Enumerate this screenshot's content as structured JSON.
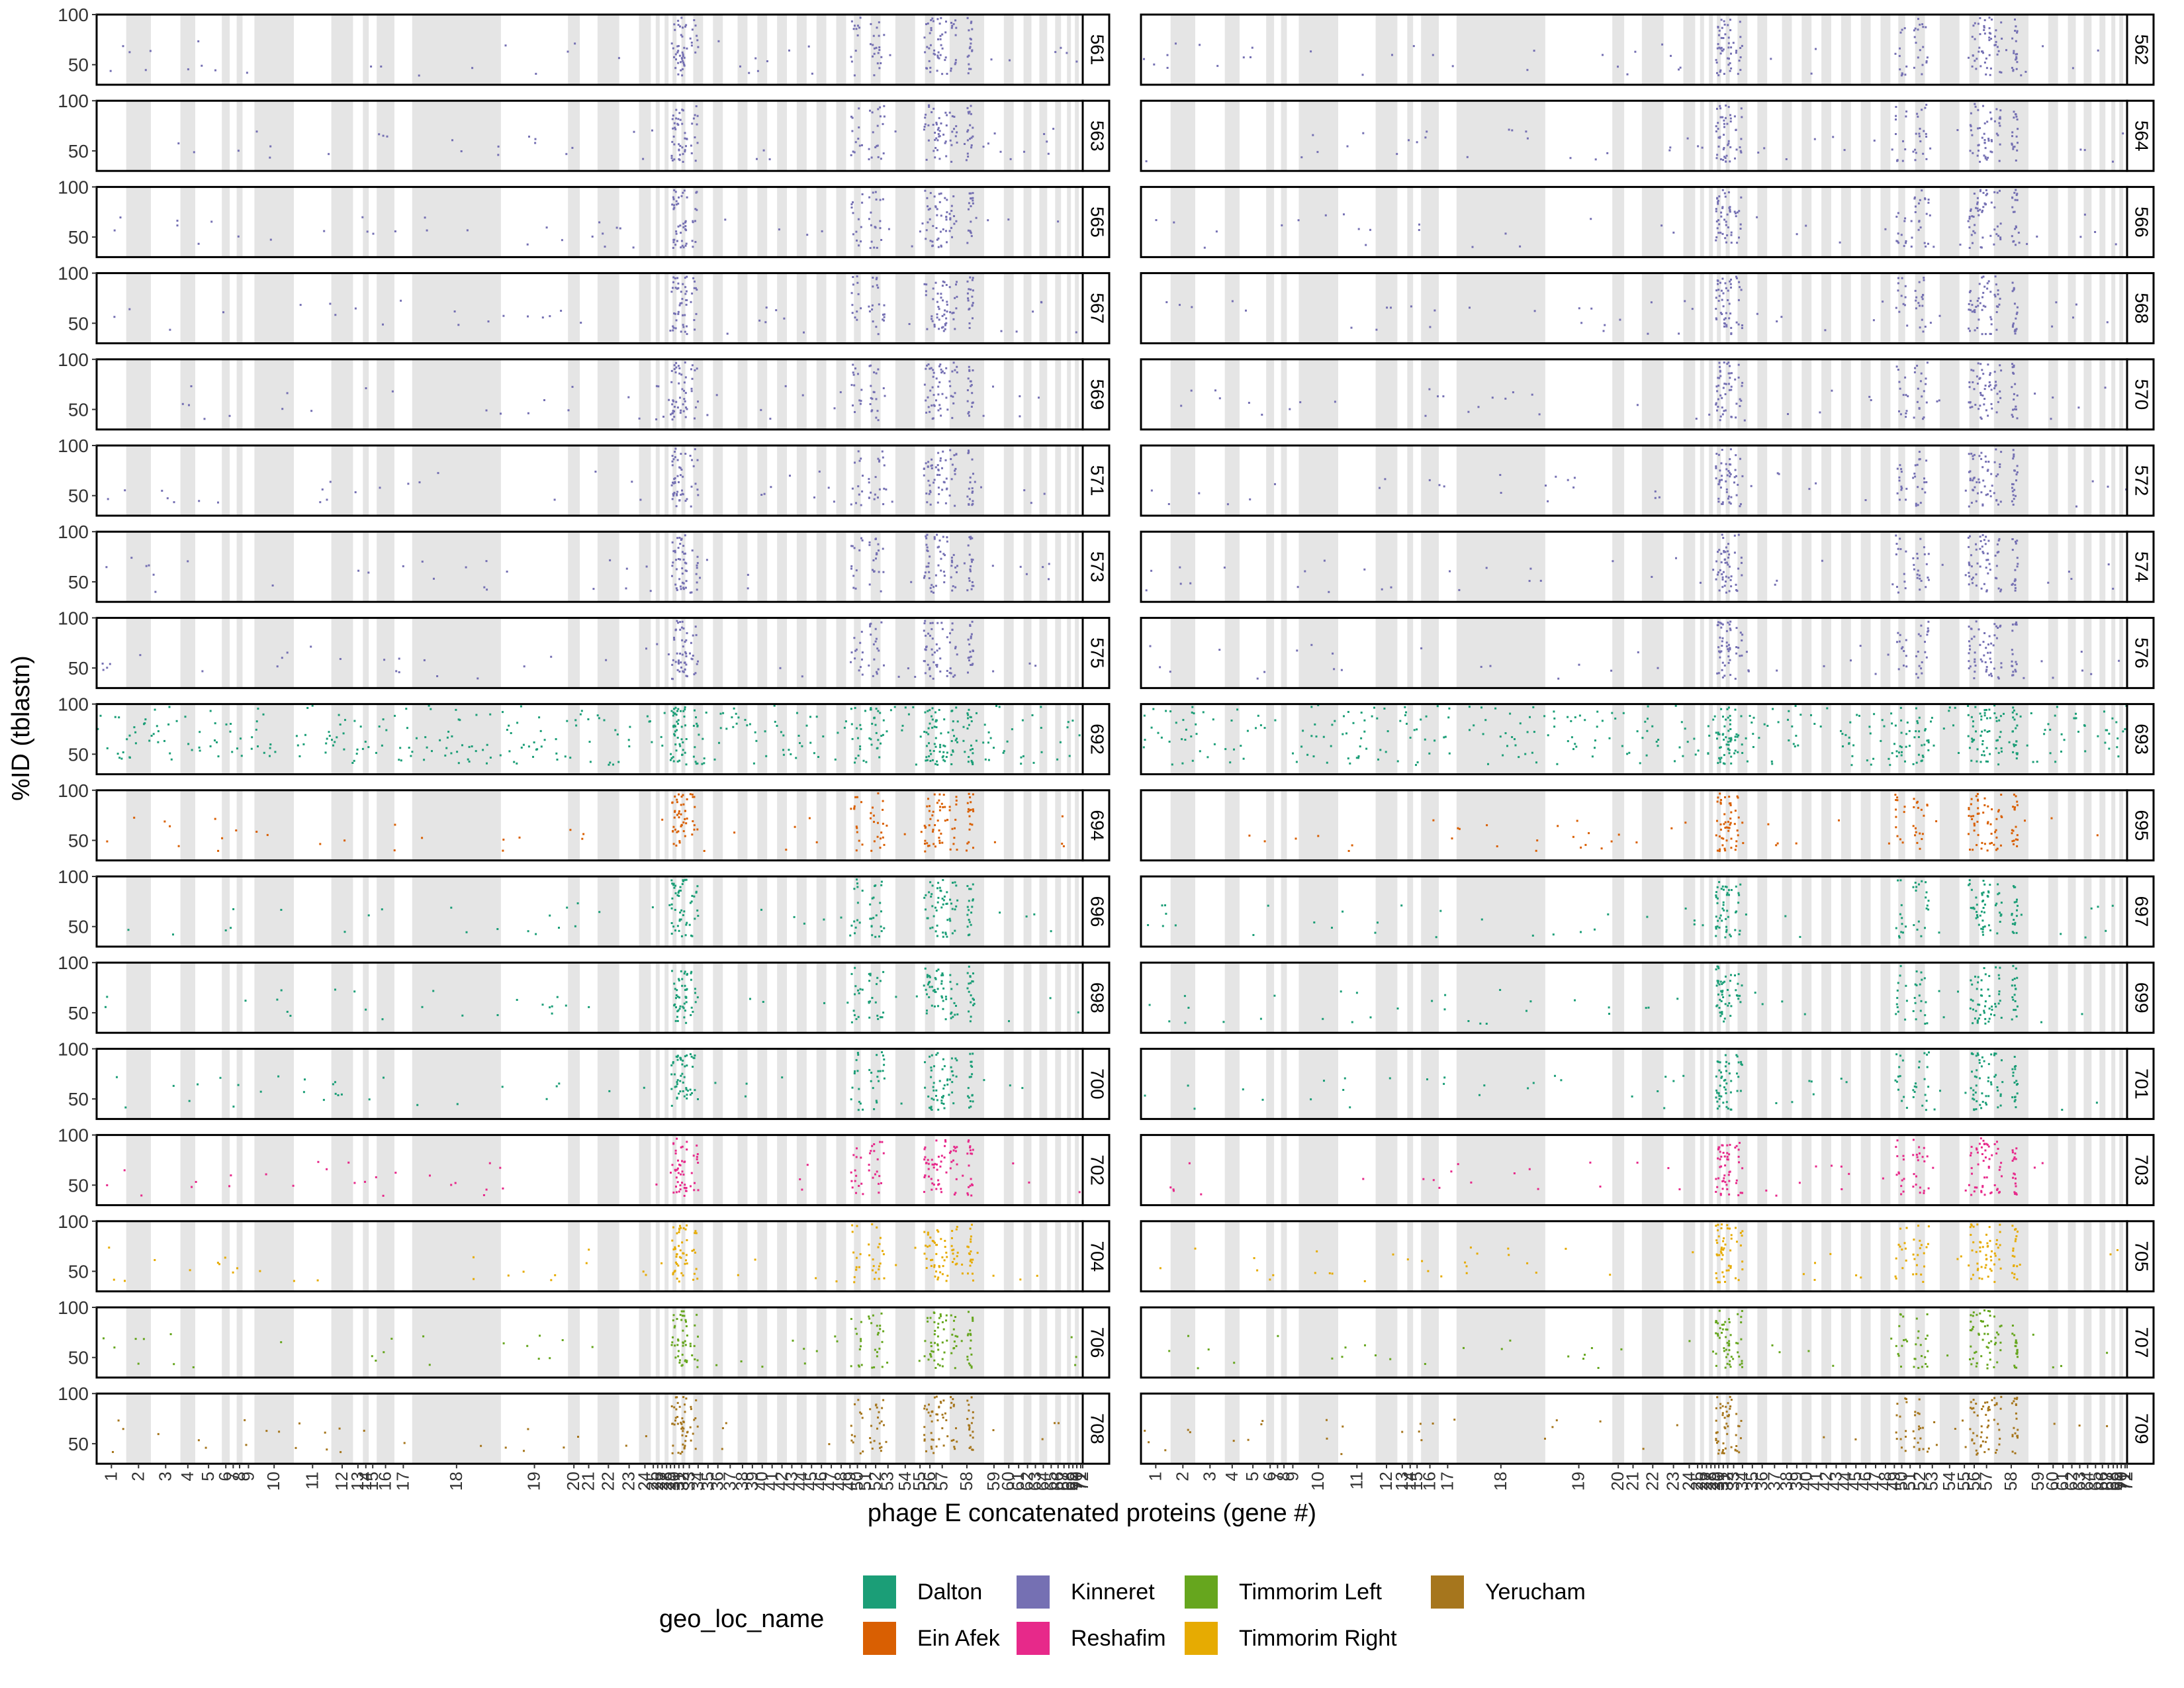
{
  "chart_data": {
    "type": "scatter",
    "facet_layout": "grid, 17 rows x 2 columns",
    "ylabel": "%ID (tblastn)",
    "xlabel": "phage E concatenated proteins (gene #)",
    "yticks": [
      50,
      100
    ],
    "ylim": [
      30,
      100
    ],
    "grid": false,
    "shaded_bands": "alternating grey bands mark gene boundaries along the concatenated proteins",
    "x_tick_labels": [
      "1",
      "2",
      "3",
      "4",
      "5",
      "6",
      "7",
      "8",
      "9",
      "10",
      "11",
      "12",
      "13",
      "14",
      "15",
      "16",
      "17",
      "18",
      "19",
      "20",
      "21",
      "22",
      "23",
      "24",
      "25",
      "26",
      "27",
      "28",
      "29",
      "30",
      "31",
      "32",
      "33",
      "34",
      "35",
      "36",
      "37",
      "38",
      "39",
      "40",
      "41",
      "42",
      "43",
      "44",
      "45",
      "46",
      "47",
      "48",
      "49",
      "50",
      "51",
      "52",
      "53",
      "54",
      "55",
      "56",
      "57",
      "58",
      "59",
      "60",
      "61",
      "62",
      "63",
      "64",
      "65",
      "66",
      "67",
      "68",
      "69",
      "70",
      "71",
      "72"
    ],
    "facets": [
      {
        "id": "561",
        "group": "Kinneret"
      },
      {
        "id": "562",
        "group": "Kinneret"
      },
      {
        "id": "563",
        "group": "Kinneret"
      },
      {
        "id": "564",
        "group": "Kinneret"
      },
      {
        "id": "565",
        "group": "Kinneret"
      },
      {
        "id": "566",
        "group": "Kinneret"
      },
      {
        "id": "567",
        "group": "Kinneret"
      },
      {
        "id": "568",
        "group": "Kinneret"
      },
      {
        "id": "569",
        "group": "Kinneret"
      },
      {
        "id": "570",
        "group": "Kinneret"
      },
      {
        "id": "571",
        "group": "Kinneret"
      },
      {
        "id": "572",
        "group": "Kinneret"
      },
      {
        "id": "573",
        "group": "Kinneret"
      },
      {
        "id": "574",
        "group": "Kinneret"
      },
      {
        "id": "575",
        "group": "Kinneret"
      },
      {
        "id": "576",
        "group": "Kinneret"
      },
      {
        "id": "692",
        "group": "Dalton"
      },
      {
        "id": "693",
        "group": "Dalton"
      },
      {
        "id": "694",
        "group": "Ein Afek"
      },
      {
        "id": "695",
        "group": "Ein Afek"
      },
      {
        "id": "696",
        "group": "Dalton"
      },
      {
        "id": "697",
        "group": "Dalton"
      },
      {
        "id": "698",
        "group": "Dalton"
      },
      {
        "id": "699",
        "group": "Dalton"
      },
      {
        "id": "700",
        "group": "Dalton"
      },
      {
        "id": "701",
        "group": "Dalton"
      },
      {
        "id": "702",
        "group": "Reshafim"
      },
      {
        "id": "703",
        "group": "Reshafim"
      },
      {
        "id": "704",
        "group": "Timmorim Right"
      },
      {
        "id": "705",
        "group": "Timmorim Right"
      },
      {
        "id": "706",
        "group": "Timmorim Left"
      },
      {
        "id": "707",
        "group": "Timmorim Left"
      },
      {
        "id": "708",
        "group": "Yerucham"
      },
      {
        "id": "709",
        "group": "Yerucham"
      }
    ],
    "legend": {
      "title": "geo_loc_name",
      "placement": "bottom",
      "entries": [
        {
          "name": "Dalton",
          "color": "#1B9E77"
        },
        {
          "name": "Ein Afek",
          "color": "#D95F02"
        },
        {
          "name": "Kinneret",
          "color": "#7570B3"
        },
        {
          "name": "Reshafim",
          "color": "#E7298A"
        },
        {
          "name": "Timmorim Left",
          "color": "#66A61E"
        },
        {
          "name": "Timmorim Right",
          "color": "#E6AB02"
        },
        {
          "name": "Yerucham",
          "color": "#A6761D"
        }
      ]
    }
  }
}
